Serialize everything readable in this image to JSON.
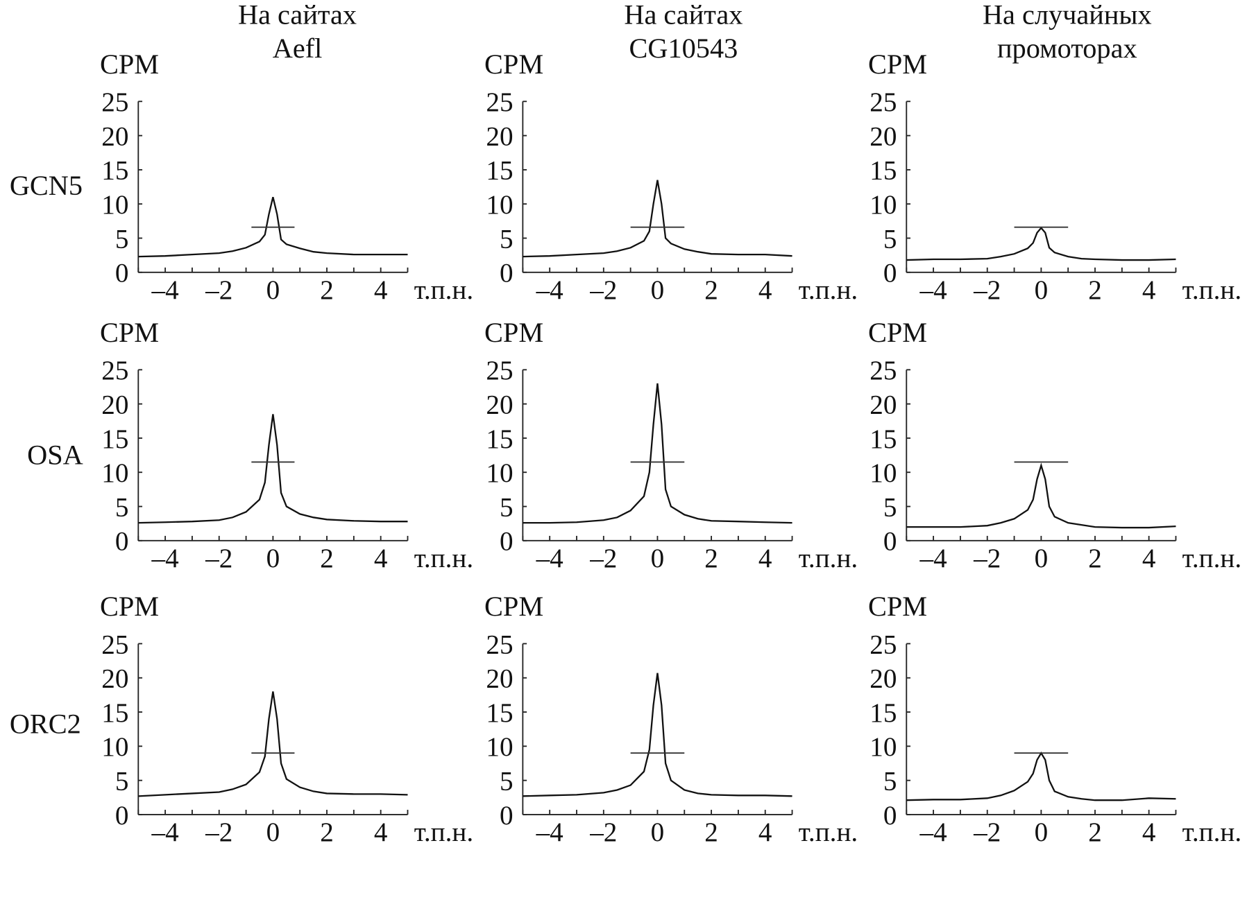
{
  "column_titles": [
    [
      "На сайтах",
      "Aefl"
    ],
    [
      "На сайтах",
      "CG10543"
    ],
    [
      "На случайных",
      "промоторах"
    ]
  ],
  "row_labels": [
    "GCN5",
    "OSA",
    "ORC2"
  ],
  "chart_data": [
    {
      "type": "line",
      "ylabel": "CPM",
      "xlabel": "т.п.н.",
      "xlim": [
        -5,
        5
      ],
      "ylim": [
        0,
        25
      ],
      "xticks": [
        -4,
        -2,
        0,
        2,
        4
      ],
      "xtick_labels": [
        "–4",
        "–2",
        "0",
        "2",
        "4"
      ],
      "yticks": [
        0,
        5,
        10,
        15,
        20,
        25
      ],
      "grid": false,
      "x": [
        -5,
        -4,
        -3,
        -2,
        -1.5,
        -1,
        -0.5,
        -0.3,
        -0.15,
        0,
        0.15,
        0.3,
        0.5,
        1,
        1.5,
        2,
        3,
        4,
        5
      ],
      "panels": [
        {
          "row": "GCN5",
          "column": "Aefl",
          "y": [
            2.3,
            2.4,
            2.6,
            2.8,
            3.1,
            3.6,
            4.5,
            5.5,
            8.5,
            11.0,
            8.5,
            4.8,
            4.1,
            3.5,
            3.0,
            2.8,
            2.6,
            2.6,
            2.6
          ],
          "line_level": 6.6,
          "line_span": [
            -0.8,
            0.8
          ]
        },
        {
          "row": "GCN5",
          "column": "CG10543",
          "y": [
            2.3,
            2.4,
            2.6,
            2.8,
            3.1,
            3.6,
            4.6,
            6.0,
            10.0,
            13.5,
            10.0,
            5.0,
            4.2,
            3.4,
            3.0,
            2.7,
            2.6,
            2.6,
            2.4
          ],
          "line_level": 6.6,
          "line_span": [
            -1.0,
            1.0
          ]
        },
        {
          "row": "GCN5",
          "column": "random",
          "y": [
            1.8,
            1.9,
            1.9,
            2.0,
            2.3,
            2.7,
            3.5,
            4.3,
            5.8,
            6.5,
            5.8,
            3.6,
            2.9,
            2.3,
            2.0,
            1.9,
            1.8,
            1.8,
            1.9
          ],
          "line_level": 6.6,
          "line_span": [
            -1.0,
            1.0
          ]
        },
        {
          "row": "OSA",
          "column": "Aefl",
          "y": [
            2.6,
            2.7,
            2.8,
            3.0,
            3.4,
            4.2,
            6.0,
            8.5,
            14.0,
            18.5,
            14.0,
            7.0,
            5.0,
            3.9,
            3.4,
            3.1,
            2.9,
            2.8,
            2.8
          ],
          "line_level": 11.5,
          "line_span": [
            -0.8,
            0.8
          ]
        },
        {
          "row": "OSA",
          "column": "CG10543",
          "y": [
            2.6,
            2.6,
            2.7,
            3.0,
            3.4,
            4.4,
            6.5,
            10.0,
            17.0,
            23.0,
            17.0,
            7.5,
            5.0,
            3.8,
            3.2,
            2.9,
            2.8,
            2.7,
            2.6
          ],
          "line_level": 11.5,
          "line_span": [
            -1.0,
            1.0
          ]
        },
        {
          "row": "OSA",
          "column": "random",
          "y": [
            2.0,
            2.0,
            2.0,
            2.2,
            2.6,
            3.2,
            4.5,
            6.0,
            9.0,
            11.0,
            9.0,
            5.0,
            3.5,
            2.6,
            2.3,
            2.0,
            1.9,
            1.9,
            2.1
          ],
          "line_level": 11.5,
          "line_span": [
            -1.0,
            1.0
          ]
        },
        {
          "row": "ORC2",
          "column": "Aefl",
          "y": [
            2.7,
            2.9,
            3.1,
            3.3,
            3.7,
            4.4,
            6.2,
            8.5,
            14.0,
            18.0,
            14.0,
            7.5,
            5.2,
            4.0,
            3.4,
            3.1,
            3.0,
            3.0,
            2.9
          ],
          "line_level": 9.0,
          "line_span": [
            -0.8,
            0.8
          ]
        },
        {
          "row": "ORC2",
          "column": "CG10543",
          "y": [
            2.7,
            2.8,
            2.9,
            3.2,
            3.6,
            4.3,
            6.3,
            9.5,
            16.0,
            20.7,
            16.0,
            7.5,
            5.0,
            3.6,
            3.1,
            2.9,
            2.8,
            2.8,
            2.7
          ],
          "line_level": 9.0,
          "line_span": [
            -1.0,
            1.0
          ]
        },
        {
          "row": "ORC2",
          "column": "random",
          "y": [
            2.1,
            2.2,
            2.2,
            2.4,
            2.8,
            3.5,
            4.8,
            6.0,
            8.0,
            9.0,
            8.0,
            5.0,
            3.4,
            2.6,
            2.3,
            2.1,
            2.1,
            2.4,
            2.3
          ],
          "line_level": 9.0,
          "line_span": [
            -1.0,
            1.0
          ]
        }
      ]
    }
  ]
}
